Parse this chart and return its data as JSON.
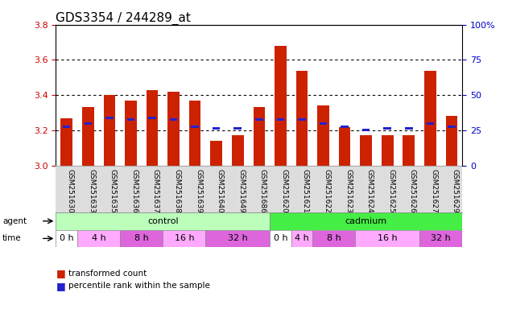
{
  "title": "GDS3354 / 244289_at",
  "samples": [
    "GSM251630",
    "GSM251633",
    "GSM251635",
    "GSM251636",
    "GSM251637",
    "GSM251638",
    "GSM251639",
    "GSM251640",
    "GSM251649",
    "GSM251686",
    "GSM251620",
    "GSM251621",
    "GSM251622",
    "GSM251623",
    "GSM251624",
    "GSM251625",
    "GSM251626",
    "GSM251627",
    "GSM251629"
  ],
  "bar_values": [
    3.27,
    3.33,
    3.4,
    3.37,
    3.43,
    3.42,
    3.37,
    3.14,
    3.17,
    3.33,
    3.68,
    3.54,
    3.34,
    3.22,
    3.17,
    3.17,
    3.17,
    3.54,
    3.28
  ],
  "percentile_values": [
    3.22,
    3.24,
    3.27,
    3.26,
    3.27,
    3.26,
    3.22,
    3.21,
    3.21,
    3.26,
    3.26,
    3.26,
    3.24,
    3.22,
    3.2,
    3.21,
    3.21,
    3.24,
    3.22
  ],
  "bar_color": "#cc2200",
  "pct_color": "#2222cc",
  "ymin": 3.0,
  "ymax": 3.8,
  "y2min": 0,
  "y2max": 100,
  "yticks": [
    3.0,
    3.2,
    3.4,
    3.6,
    3.8
  ],
  "y2ticks": [
    0,
    25,
    50,
    75,
    100
  ],
  "grid_values": [
    3.2,
    3.4,
    3.6
  ],
  "agent_groups": [
    {
      "label": "control",
      "start": 0,
      "end": 9,
      "color": "#bbffbb"
    },
    {
      "label": "cadmium",
      "start": 10,
      "end": 18,
      "color": "#44ee44"
    }
  ],
  "time_groups": [
    {
      "label": "0 h",
      "start": 0,
      "end": 0,
      "color": "#ffffff"
    },
    {
      "label": "4 h",
      "start": 1,
      "end": 2,
      "color": "#ffaaff"
    },
    {
      "label": "8 h",
      "start": 3,
      "end": 4,
      "color": "#dd66dd"
    },
    {
      "label": "16 h",
      "start": 5,
      "end": 6,
      "color": "#ffaaff"
    },
    {
      "label": "32 h",
      "start": 7,
      "end": 9,
      "color": "#dd66dd"
    },
    {
      "label": "0 h",
      "start": 10,
      "end": 10,
      "color": "#ffffff"
    },
    {
      "label": "4 h",
      "start": 11,
      "end": 11,
      "color": "#ffaaff"
    },
    {
      "label": "8 h",
      "start": 12,
      "end": 13,
      "color": "#dd66dd"
    },
    {
      "label": "16 h",
      "start": 14,
      "end": 16,
      "color": "#ffaaff"
    },
    {
      "label": "32 h",
      "start": 17,
      "end": 18,
      "color": "#dd66dd"
    }
  ],
  "bg_color": "#ffffff",
  "tick_label_color_left": "#cc0000",
  "tick_label_color_right": "#0000cc",
  "sample_bg_color": "#dddddd",
  "title_fontsize": 11,
  "bar_width": 0.55
}
